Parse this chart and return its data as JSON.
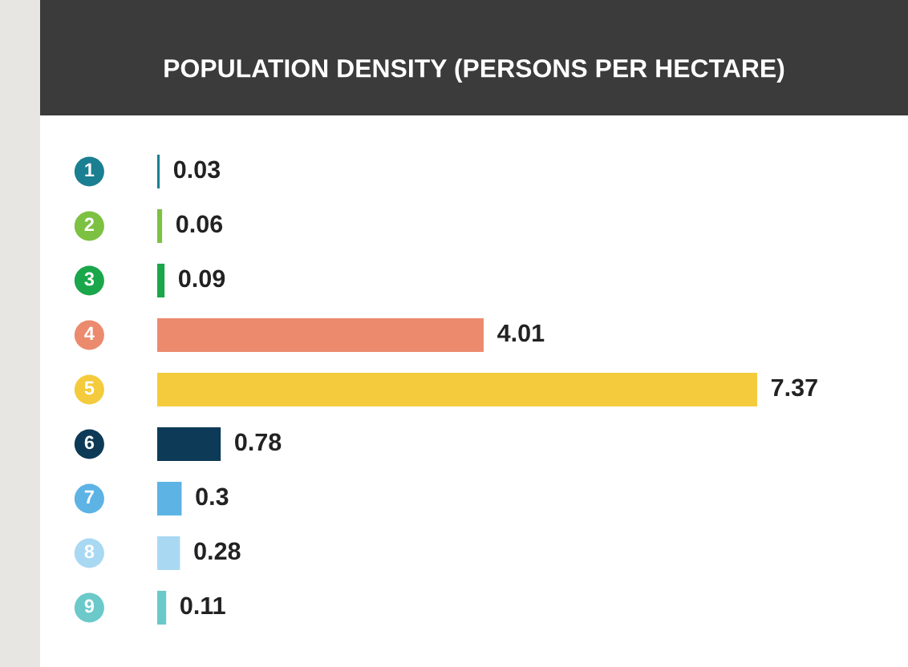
{
  "chart_data": {
    "type": "bar",
    "orientation": "horizontal",
    "title": "POPULATION DENSITY (PERSONS PER HECTARE)",
    "categories": [
      "1",
      "2",
      "3",
      "4",
      "5",
      "6",
      "7",
      "8",
      "9"
    ],
    "values": [
      0.03,
      0.06,
      0.09,
      4.01,
      7.37,
      0.78,
      0.3,
      0.28,
      0.11
    ],
    "colors": [
      "#1a7f91",
      "#7dc142",
      "#1aa64a",
      "#ec8a6e",
      "#f4cb3c",
      "#0d3a56",
      "#5db3e4",
      "#a9d8f2",
      "#6bc9c9"
    ],
    "data_labels": true
  }
}
